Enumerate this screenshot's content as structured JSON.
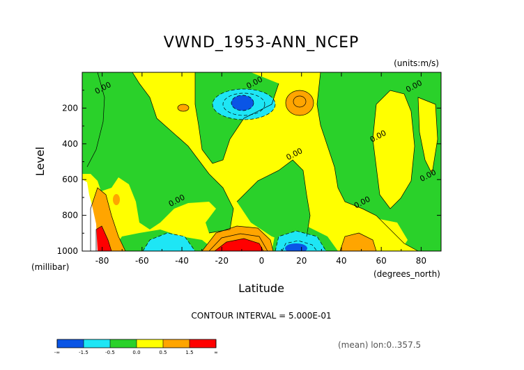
{
  "figure": {
    "title": "VWND_1953-ANN_NCEP",
    "units_label": "(units:m/s)",
    "contour_interval_label": "CONTOUR INTERVAL = 5.000E-01",
    "mean_label": "(mean) lon:0..357.5",
    "xunits_label": "(degrees_north)",
    "yunits_label": "(millibar)"
  },
  "chart_data": {
    "type": "heatmap",
    "title": "VWND_1953-ANN_NCEP",
    "xlabel": "Latitude",
    "ylabel": "Level",
    "x_ticks": [
      "-80",
      "-60",
      "-40",
      "-20",
      "0",
      "20",
      "40",
      "60",
      "80"
    ],
    "x_tick_values": [
      -80,
      -60,
      -40,
      -20,
      0,
      20,
      40,
      60,
      80
    ],
    "y_ticks": [
      "200",
      "400",
      "600",
      "800",
      "1000"
    ],
    "y_tick_values": [
      200,
      400,
      600,
      800,
      1000
    ],
    "xlim": [
      -90,
      90
    ],
    "ylim": [
      1000,
      0
    ],
    "contour_labels": [
      {
        "text": "0.00",
        "x": -79,
        "y": 100
      },
      {
        "text": "0.00",
        "x": -3,
        "y": 70
      },
      {
        "text": "0.00",
        "x": 77,
        "y": 90
      },
      {
        "text": "0.00",
        "x": 59,
        "y": 370
      },
      {
        "text": "0.00",
        "x": 84,
        "y": 590
      },
      {
        "text": "0.00",
        "x": 17,
        "y": 470
      },
      {
        "text": "0.00",
        "x": -42,
        "y": 730
      },
      {
        "text": "0.00",
        "x": 51,
        "y": 740
      }
    ],
    "colorbar": {
      "labels": [
        "-∞",
        "-1.5",
        "-0.5",
        "0.0",
        "0.5",
        "1.5",
        "∞"
      ],
      "colors": [
        "#0a55e6",
        "#1ee6f5",
        "#2ad12a",
        "#ffff00",
        "#ffa500",
        "#ff0000"
      ]
    },
    "regions": [
      {
        "level": "-1.5..-0.5",
        "color": "#1ee6f5",
        "x_range": [
          -28,
          -2
        ],
        "y_range": [
          100,
          230
        ]
      },
      {
        "level": "< -1.5",
        "color": "#0a55e6",
        "x_range": [
          -18,
          -6
        ],
        "y_range": [
          130,
          200
        ]
      },
      {
        "level": "-1.5..-0.5",
        "color": "#1ee6f5",
        "x_range": [
          -50,
          -30
        ],
        "y_range": [
          900,
          1000
        ]
      },
      {
        "level": "-1.5..-0.5",
        "color": "#1ee6f5",
        "x_range": [
          6,
          30
        ],
        "y_range": [
          880,
          1000
        ]
      },
      {
        "level": "< -1.5",
        "color": "#0a55e6",
        "x_range": [
          10,
          22
        ],
        "y_range": [
          960,
          1000
        ]
      },
      {
        "level": "0.5..1.5",
        "color": "#ffa500",
        "x_range": [
          -28,
          0
        ],
        "y_range": [
          860,
          1000
        ]
      },
      {
        "level": "> 1.5",
        "color": "#ff0000",
        "x_range": [
          -20,
          -4
        ],
        "y_range": [
          940,
          1000
        ]
      },
      {
        "level": "0.5..1.5",
        "color": "#ffa500",
        "x_range": [
          6,
          20
        ],
        "y_range": [
          100,
          230
        ]
      },
      {
        "level": "0.5..1.5",
        "color": "#ffa500",
        "x_range": [
          -60,
          -52
        ],
        "y_range": [
          180,
          220
        ]
      },
      {
        "level": "0.5..1.5",
        "color": "#ffa500",
        "x_range": [
          38,
          56
        ],
        "y_range": [
          920,
          1000
        ]
      },
      {
        "level": "0.5..1.5",
        "color": "#ffa500",
        "x_range": [
          -88,
          -76
        ],
        "y_range": [
          760,
          1000
        ]
      },
      {
        "level": "> 1.5",
        "color": "#ff0000",
        "x_range": [
          -88,
          -82
        ],
        "y_range": [
          900,
          1000
        ]
      }
    ]
  }
}
